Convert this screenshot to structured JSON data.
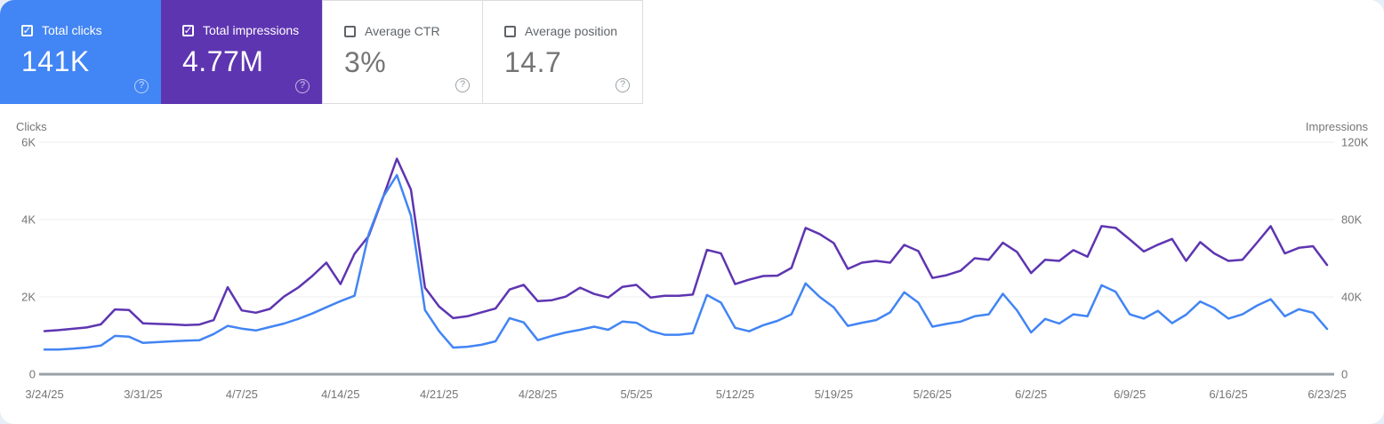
{
  "icons": {
    "check_glyph": "✓",
    "help_glyph": "?"
  },
  "cards": [
    {
      "id": "total-clicks",
      "label": "Total clicks",
      "value": "141K",
      "selected": true,
      "color": "#4285f4"
    },
    {
      "id": "total-impressions",
      "label": "Total impressions",
      "value": "4.77M",
      "selected": true,
      "color": "#5e35b1"
    },
    {
      "id": "average-ctr",
      "label": "Average CTR",
      "value": "3%",
      "selected": false,
      "color": "#ffffff"
    },
    {
      "id": "average-position",
      "label": "Average position",
      "value": "14.7",
      "selected": false,
      "color": "#ffffff"
    }
  ],
  "chart_data": {
    "type": "line",
    "x_interval": "daily",
    "x_tick_labels": [
      "3/24/25",
      "3/31/25",
      "4/7/25",
      "4/14/25",
      "4/21/25",
      "4/28/25",
      "5/5/25",
      "5/12/25",
      "5/19/25",
      "5/26/25",
      "6/2/25",
      "6/9/25",
      "6/16/25",
      "6/23/25"
    ],
    "left_axis": {
      "title": "Clicks",
      "ticks": [
        "0",
        "2K",
        "4K",
        "6K"
      ],
      "range": [
        0,
        6000
      ]
    },
    "right_axis": {
      "title": "Impressions",
      "ticks": [
        "0",
        "40K",
        "80K",
        "120K"
      ],
      "range": [
        0,
        120000
      ]
    },
    "grid": "horizontal",
    "legend": "none",
    "colors": {
      "gridline": "#eeeeee",
      "baseline": "#9aa0a6",
      "tick_text": "#757575"
    },
    "series": [
      {
        "name": "Total impressions",
        "axis": "right",
        "color": "#5e35b1",
        "values": [
          22300,
          22800,
          23500,
          24200,
          25800,
          33500,
          33200,
          26300,
          26000,
          25800,
          25400,
          25700,
          28000,
          45000,
          33000,
          31800,
          33800,
          40200,
          44800,
          50800,
          57700,
          46600,
          62300,
          71500,
          91000,
          111500,
          95500,
          44800,
          35000,
          29000,
          30000,
          32000,
          34000,
          43800,
          46200,
          37800,
          38300,
          40200,
          44800,
          41500,
          39700,
          45200,
          46200,
          39700,
          40600,
          40600,
          41200,
          64300,
          62500,
          46600,
          48900,
          50800,
          51000,
          55000,
          75700,
          72500,
          67800,
          54500,
          57700,
          58600,
          57700,
          66900,
          63700,
          49800,
          51200,
          53500,
          60000,
          59200,
          68000,
          63200,
          52300,
          59200,
          58600,
          64200,
          60800,
          76600,
          75700,
          69700,
          63500,
          67000,
          70000,
          58600,
          68300,
          62500,
          58600,
          59200,
          67800,
          76600,
          62500,
          65400,
          66200,
          56500
        ]
      },
      {
        "name": "Total clicks",
        "axis": "left",
        "color": "#4285f4",
        "values": [
          640,
          640,
          660,
          690,
          740,
          990,
          970,
          810,
          830,
          850,
          870,
          880,
          1040,
          1250,
          1180,
          1130,
          1220,
          1310,
          1430,
          1570,
          1730,
          1890,
          2030,
          3620,
          4570,
          5150,
          4100,
          1660,
          1110,
          690,
          710,
          760,
          850,
          1450,
          1340,
          880,
          990,
          1080,
          1150,
          1230,
          1150,
          1360,
          1330,
          1120,
          1020,
          1020,
          1060,
          2050,
          1850,
          1200,
          1110,
          1270,
          1380,
          1550,
          2350,
          2000,
          1730,
          1250,
          1330,
          1400,
          1600,
          2120,
          1850,
          1230,
          1300,
          1360,
          1500,
          1550,
          2080,
          1650,
          1080,
          1430,
          1310,
          1550,
          1500,
          2300,
          2130,
          1550,
          1440,
          1640,
          1320,
          1540,
          1880,
          1710,
          1440,
          1550,
          1770,
          1940,
          1500,
          1680,
          1590,
          1170
        ]
      }
    ]
  }
}
